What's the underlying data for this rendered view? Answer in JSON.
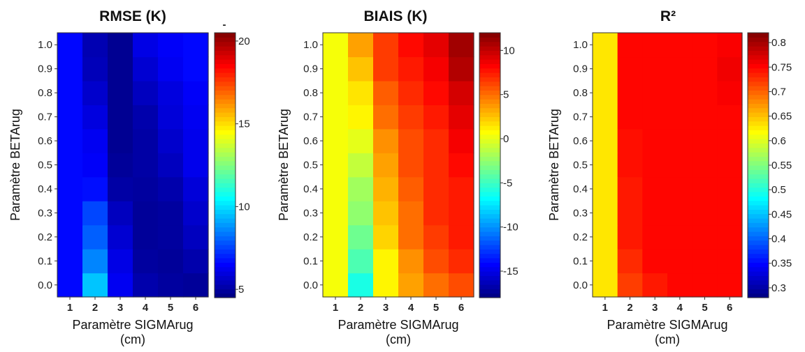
{
  "figure": {
    "xlabel_line1": "Paramètre SIGMArug",
    "xlabel_line2": "(cm)",
    "ylabel": "Paramètre BETArug"
  },
  "colors": {
    "jet": [
      "#00007f",
      "#0000ff",
      "#007fff",
      "#00ffff",
      "#7fff7f",
      "#ffff00",
      "#ff7f00",
      "#ff0000",
      "#7f0000"
    ]
  },
  "chart_data": [
    {
      "type": "heatmap",
      "title": "RMSE (K)",
      "colorbar_extra_label": "-",
      "x": [
        1,
        2,
        3,
        4,
        5,
        6
      ],
      "x_ticks": [
        "1",
        "2",
        "3",
        "4",
        "5",
        "6"
      ],
      "y": [
        0.0,
        0.1,
        0.2,
        0.3,
        0.4,
        0.5,
        0.6,
        0.7,
        0.8,
        0.9,
        1.0
      ],
      "y_ticks": [
        "0.0",
        "0.1",
        "0.2",
        "0.3",
        "0.4",
        "0.5",
        "0.6",
        "0.7",
        "0.8",
        "0.9",
        "1.0"
      ],
      "xlabel": "Paramètre SIGMArug (cm)",
      "ylabel": "Paramètre BETArug",
      "clim": [
        4.5,
        20.5
      ],
      "colorbar_ticks": [
        "5",
        "10",
        "15",
        "20"
      ],
      "colorbar_tick_values": [
        5,
        10,
        15,
        20
      ],
      "z": [
        [
          6.6,
          9.6,
          6.3,
          5.2,
          5.0,
          4.9
        ],
        [
          6.6,
          8.6,
          6.1,
          5.0,
          4.9,
          5.2
        ],
        [
          6.6,
          8.0,
          5.8,
          4.9,
          5.0,
          5.5
        ],
        [
          6.6,
          7.6,
          5.5,
          4.9,
          5.0,
          5.7
        ],
        [
          6.6,
          6.7,
          5.1,
          5.0,
          5.2,
          5.9
        ],
        [
          6.6,
          6.4,
          4.9,
          5.1,
          5.5,
          6.2
        ],
        [
          6.6,
          6.3,
          4.8,
          5.1,
          5.7,
          6.2
        ],
        [
          6.6,
          6.0,
          4.8,
          5.2,
          5.9,
          6.3
        ],
        [
          6.6,
          5.7,
          4.8,
          5.5,
          6.0,
          6.4
        ],
        [
          6.6,
          5.4,
          4.8,
          5.8,
          6.3,
          6.6
        ],
        [
          6.6,
          5.3,
          4.8,
          6.1,
          6.4,
          6.6
        ]
      ]
    },
    {
      "type": "heatmap",
      "title": "BIAIS (K)",
      "x": [
        1,
        2,
        3,
        4,
        5,
        6
      ],
      "x_ticks": [
        "1",
        "2",
        "3",
        "4",
        "5",
        "6"
      ],
      "y": [
        0.0,
        0.1,
        0.2,
        0.3,
        0.4,
        0.5,
        0.6,
        0.7,
        0.8,
        0.9,
        1.0
      ],
      "y_ticks": [
        "0.0",
        "0.1",
        "0.2",
        "0.3",
        "0.4",
        "0.5",
        "0.6",
        "0.7",
        "0.8",
        "0.9",
        "1.0"
      ],
      "xlabel": "Paramètre SIGMArug (cm)",
      "ylabel": "Paramètre BETArug",
      "clim": [
        -18,
        12
      ],
      "colorbar_ticks": [
        "10",
        "5",
        "0",
        "-5",
        "-10",
        "-15"
      ],
      "colorbar_tick_values": [
        10,
        5,
        0,
        -5,
        -10,
        -15
      ],
      "z": [
        [
          0.5,
          -6.0,
          1.0,
          3.5,
          5.0,
          6.0
        ],
        [
          0.5,
          -4.5,
          1.0,
          4.0,
          6.0,
          7.0
        ],
        [
          0.5,
          -3.5,
          2.0,
          5.0,
          6.5,
          7.5
        ],
        [
          0.5,
          -2.5,
          2.5,
          5.0,
          7.0,
          7.5
        ],
        [
          0.5,
          -2.0,
          3.0,
          5.5,
          7.0,
          7.5
        ],
        [
          0.5,
          -1.0,
          3.5,
          6.0,
          7.0,
          8.0
        ],
        [
          0.5,
          0.0,
          4.0,
          6.0,
          7.0,
          8.5
        ],
        [
          0.5,
          1.0,
          5.0,
          6.5,
          7.5,
          9.0
        ],
        [
          0.5,
          1.5,
          5.5,
          7.0,
          8.0,
          9.5
        ],
        [
          0.5,
          2.5,
          6.5,
          7.5,
          8.5,
          10.5
        ],
        [
          0.5,
          3.5,
          6.5,
          8.0,
          9.0,
          11.0
        ]
      ]
    },
    {
      "type": "heatmap",
      "title": "R²",
      "x": [
        1,
        2,
        3,
        4,
        5,
        6
      ],
      "x_ticks": [
        "1",
        "2",
        "3",
        "4",
        "5",
        "6"
      ],
      "y": [
        0.0,
        0.1,
        0.2,
        0.3,
        0.4,
        0.5,
        0.6,
        0.7,
        0.8,
        0.9,
        1.0
      ],
      "y_ticks": [
        "0.0",
        "0.1",
        "0.2",
        "0.3",
        "0.4",
        "0.5",
        "0.6",
        "0.7",
        "0.8",
        "0.9",
        "1.0"
      ],
      "xlabel": "Paramètre SIGMArug (cm)",
      "ylabel": "Paramètre BETArug",
      "clim": [
        0.28,
        0.82
      ],
      "colorbar_ticks": [
        "0.8",
        "0.75",
        "0.7",
        "0.65",
        "0.6",
        "0.55",
        "0.5",
        "0.45",
        "0.4",
        "0.35",
        "0.3"
      ],
      "colorbar_tick_values": [
        0.8,
        0.75,
        0.7,
        0.65,
        0.6,
        0.55,
        0.5,
        0.45,
        0.4,
        0.35,
        0.3
      ],
      "z": [
        [
          0.63,
          0.72,
          0.74,
          0.75,
          0.75,
          0.75
        ],
        [
          0.63,
          0.73,
          0.75,
          0.75,
          0.75,
          0.75
        ],
        [
          0.63,
          0.74,
          0.75,
          0.75,
          0.75,
          0.75
        ],
        [
          0.63,
          0.74,
          0.75,
          0.75,
          0.75,
          0.75
        ],
        [
          0.63,
          0.74,
          0.75,
          0.75,
          0.75,
          0.75
        ],
        [
          0.63,
          0.745,
          0.75,
          0.75,
          0.75,
          0.75
        ],
        [
          0.63,
          0.745,
          0.75,
          0.75,
          0.75,
          0.75
        ],
        [
          0.63,
          0.75,
          0.75,
          0.75,
          0.75,
          0.75
        ],
        [
          0.63,
          0.75,
          0.75,
          0.75,
          0.75,
          0.755
        ],
        [
          0.63,
          0.75,
          0.75,
          0.75,
          0.75,
          0.76
        ],
        [
          0.63,
          0.75,
          0.75,
          0.75,
          0.75,
          0.755
        ]
      ]
    }
  ]
}
